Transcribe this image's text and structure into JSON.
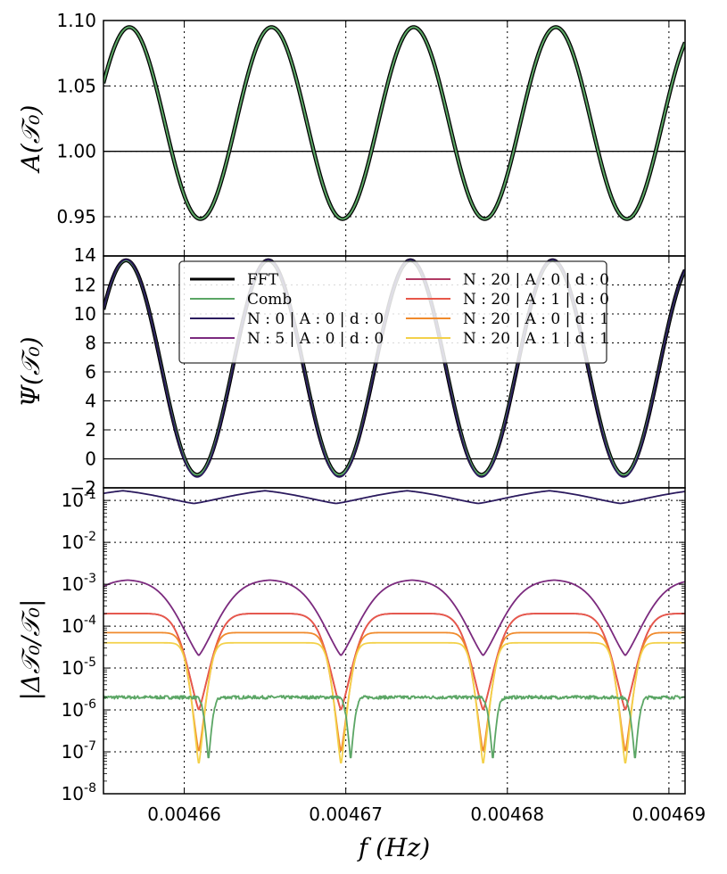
{
  "chart_data": [
    {
      "type": "line",
      "panel": "top",
      "ylabel": "A(𝒯₀)",
      "xlim": [
        0.004655,
        0.004691
      ],
      "ylim": [
        0.92,
        1.1
      ],
      "yticks": [
        "0.95",
        "1.00",
        "1.05",
        "1.10"
      ],
      "ytick_values": [
        0.95,
        1.0,
        1.05,
        1.1
      ],
      "reference_line": 1.0,
      "grid": true,
      "series": [
        {
          "name": "FFT",
          "color": "#000000",
          "model": {
            "kind": "cosine",
            "mean": 1.0216,
            "amplitude": 0.0733,
            "peak_x": 0.0046566,
            "period": 8.8e-06
          }
        },
        {
          "name": "Comb",
          "color": "#5ba665",
          "model": {
            "kind": "cosine",
            "mean": 1.0216,
            "amplitude": 0.0733,
            "peak_x": 0.0046566,
            "period": 8.8e-06
          }
        }
      ]
    },
    {
      "type": "line",
      "panel": "middle",
      "ylabel": "Ψ(𝒯₀)",
      "xlim": [
        0.004655,
        0.004691
      ],
      "ylim": [
        -2,
        14
      ],
      "yticks": [
        "−2",
        "0",
        "2",
        "4",
        "6",
        "8",
        "10",
        "12",
        "14"
      ],
      "ytick_values": [
        -2,
        0,
        2,
        4,
        6,
        8,
        10,
        12,
        14
      ],
      "reference_line": 0,
      "grid": true,
      "legend": "top-center",
      "series": [
        {
          "name": "FFT",
          "color": "#000000",
          "model": {
            "kind": "cosine",
            "mean": 6.3,
            "amplitude": 7.4,
            "peak_x": 0.0046652,
            "period": 8.8e-06
          }
        },
        {
          "name": "Comb",
          "color": "#5ba665",
          "model": {
            "kind": "cosine",
            "mean": 6.3,
            "amplitude": 7.4,
            "peak_x": 0.0046652,
            "period": 8.8e-06
          }
        },
        {
          "name": "N:0 | A:0 | d:0",
          "color": "#2b1a5e",
          "model": {
            "kind": "cosine",
            "mean": 6.25,
            "amplitude": 7.5,
            "peak_x": 0.0046652,
            "period": 8.8e-06
          }
        }
      ]
    },
    {
      "type": "line",
      "panel": "bottom",
      "ylabel": "|Δ𝒯₀/𝒯₀|",
      "xlabel": "f (Hz)",
      "yscale": "log",
      "xlim": [
        0.004655,
        0.004691
      ],
      "ylim": [
        1e-08,
        0.2
      ],
      "yticks": [
        "10-8",
        "10-7",
        "10-6",
        "10-5",
        "10-4",
        "10-3",
        "10-2",
        "10-1"
      ],
      "ytick_values": [
        1e-08,
        1e-07,
        1e-06,
        1e-05,
        0.0001,
        0.001,
        0.01,
        0.1
      ],
      "xticks": [
        "0.00466",
        "0.00467",
        "0.00468",
        "0.00469"
      ],
      "xtick_values": [
        0.00466,
        0.00467,
        0.00468,
        0.00469
      ],
      "grid": true,
      "series": [
        {
          "name": "N:0 | A:0 | d:0",
          "color": "#2b1a5e",
          "model": {
            "kind": "periodic_log",
            "period": 8.8e-06,
            "min_x": 0.0046606,
            "min": 0.085,
            "max": 0.2,
            "dip_width": 2.8e-06
          }
        },
        {
          "name": "N:5 | A:0 | d:0",
          "color": "#7b2a7e",
          "model": {
            "kind": "periodic_log",
            "period": 8.8e-06,
            "min_x": 0.0046609,
            "min": 2e-05,
            "max": 0.0013,
            "dip_width": 1.5e-06
          }
        },
        {
          "name": "N:20 | A:0 | d:0",
          "color": "#b03a64",
          "model": {
            "kind": "periodic_log",
            "period": 8.8e-06,
            "min_x": 0.0046609,
            "min": 1e-06,
            "max": 0.0002,
            "dip_width": 9e-07
          }
        },
        {
          "name": "N:20 | A:1 | d:0",
          "color": "#e8584a",
          "model": {
            "kind": "periodic_log",
            "period": 8.8e-06,
            "min_x": 0.0046609,
            "min": 1e-06,
            "max": 0.0002,
            "dip_width": 9e-07
          }
        },
        {
          "name": "N:20 | A:0 | d:1",
          "color": "#f08a2c",
          "model": {
            "kind": "periodic_log",
            "period": 8.8e-06,
            "min_x": 0.0046609,
            "min": 1e-07,
            "max": 7e-05,
            "dip_width": 6e-07
          }
        },
        {
          "name": "N:20 | A:1 | d:1",
          "color": "#f3d14a",
          "model": {
            "kind": "periodic_log",
            "period": 8.8e-06,
            "min_x": 0.0046609,
            "min": 5e-08,
            "max": 4e-05,
            "dip_width": 5e-07
          }
        },
        {
          "name": "Comb",
          "color": "#5ba665",
          "model": {
            "kind": "comb_noise",
            "period": 8.8e-06,
            "min_x": 0.0046615,
            "plateau": 2e-06,
            "min": 6e-08,
            "notch_width": 2.5e-07
          }
        }
      ]
    }
  ],
  "legend": {
    "entries": [
      {
        "label": "FFT",
        "color": "#000000",
        "width": 3
      },
      {
        "label": "Comb",
        "color": "#5ba665",
        "width": 2
      },
      {
        "label": "N : 0 | A : 0 | d : 0",
        "color": "#2b1a5e",
        "width": 2
      },
      {
        "label": "N : 5 | A : 0 | d : 0",
        "color": "#7b2a7e",
        "width": 2
      },
      {
        "label": "N : 20 | A : 0 | d : 0",
        "color": "#b03a64",
        "width": 2
      },
      {
        "label": "N : 20 | A : 1 | d : 0",
        "color": "#e8584a",
        "width": 2
      },
      {
        "label": "N : 20 | A : 0 | d : 1",
        "color": "#f08a2c",
        "width": 2
      },
      {
        "label": "N : 20 | A : 1 | d : 1",
        "color": "#f3d14a",
        "width": 2
      }
    ]
  }
}
